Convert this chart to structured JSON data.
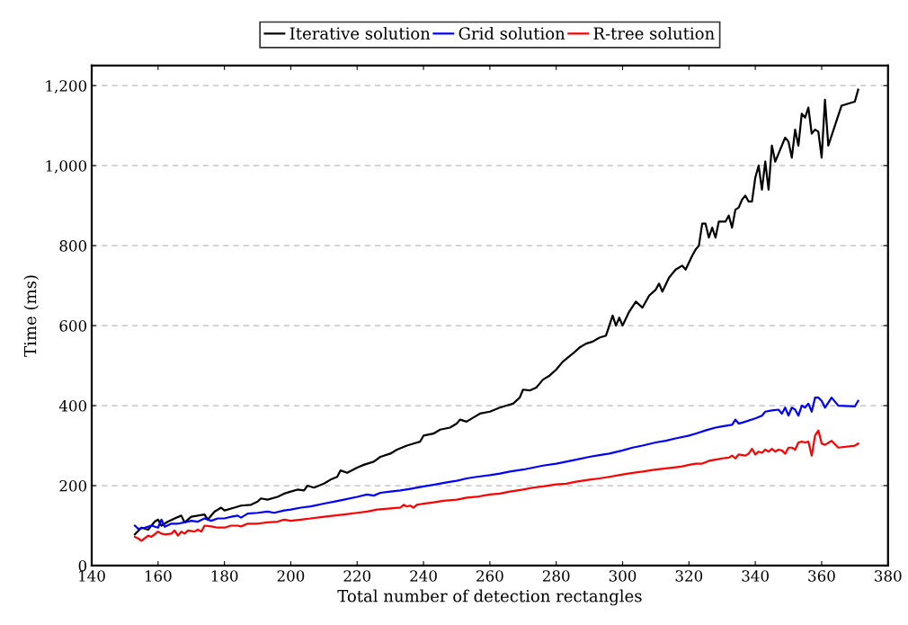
{
  "chart_data": {
    "type": "line",
    "xlabel": "Total number of detection rectangles",
    "ylabel": "Time (ms)",
    "xlim": [
      140,
      380
    ],
    "xticks": [
      140,
      160,
      180,
      200,
      220,
      240,
      260,
      280,
      300,
      320,
      340,
      360,
      380
    ],
    "ylim": [
      0,
      1250
    ],
    "yticks": [
      0,
      200,
      400,
      600,
      800,
      {
        "value": 1000,
        "label": "1,000"
      },
      {
        "value": 1200,
        "label": "1,200"
      }
    ],
    "grid": "y",
    "legend": "top",
    "marker": "none",
    "line_style": "solid",
    "series": [
      {
        "name": "Iterative solution",
        "color": "#000000",
        "x": [
          153,
          155,
          157,
          159,
          160,
          161,
          163,
          165,
          167,
          168,
          170,
          172,
          174,
          175,
          177,
          179,
          180,
          183,
          185,
          188,
          190,
          191,
          193,
          196,
          198,
          200,
          202,
          204,
          205,
          207,
          210,
          212,
          214,
          215,
          217,
          220,
          222,
          225,
          227,
          230,
          232,
          235,
          237,
          239,
          240,
          243,
          245,
          248,
          250,
          251,
          253,
          255,
          257,
          260,
          263,
          265,
          267,
          269,
          270,
          272,
          274,
          276,
          278,
          280,
          282,
          285,
          287,
          289,
          291,
          293,
          295,
          296,
          297,
          298,
          299,
          300,
          302,
          304,
          306,
          308,
          310,
          311,
          312,
          314,
          316,
          318,
          319,
          321,
          322,
          323,
          324,
          325,
          326,
          327,
          328,
          329,
          331,
          332,
          333,
          334,
          335,
          336,
          337,
          338,
          339,
          340,
          341,
          342,
          343,
          344,
          345,
          346,
          347,
          349,
          350,
          351,
          352,
          353,
          354,
          355,
          356,
          357,
          358,
          359,
          360,
          361,
          362,
          364,
          366,
          370,
          371
        ],
        "values": [
          78,
          95,
          90,
          110,
          115,
          100,
          110,
          118,
          125,
          108,
          122,
          125,
          128,
          115,
          135,
          145,
          138,
          145,
          150,
          152,
          160,
          168,
          165,
          172,
          180,
          185,
          190,
          188,
          200,
          195,
          205,
          215,
          222,
          238,
          232,
          245,
          252,
          260,
          272,
          280,
          290,
          300,
          305,
          310,
          325,
          330,
          340,
          345,
          355,
          365,
          360,
          370,
          380,
          385,
          395,
          400,
          405,
          420,
          440,
          438,
          445,
          465,
          475,
          490,
          510,
          530,
          545,
          555,
          560,
          570,
          575,
          600,
          625,
          600,
          620,
          600,
          635,
          660,
          645,
          675,
          690,
          705,
          685,
          720,
          740,
          750,
          740,
          775,
          790,
          800,
          855,
          855,
          820,
          845,
          820,
          860,
          860,
          875,
          845,
          890,
          895,
          915,
          925,
          910,
          910,
          970,
          1000,
          940,
          1010,
          940,
          1050,
          1010,
          1030,
          1070,
          1060,
          1020,
          1090,
          1050,
          1130,
          1120,
          1145,
          1080,
          1090,
          1085,
          1020,
          1165,
          1050,
          1100,
          1150,
          1160,
          1190
        ]
      },
      {
        "name": "Grid solution",
        "color": "#0000ff",
        "x": [
          153,
          154,
          156,
          158,
          160,
          161,
          162,
          164,
          166,
          168,
          170,
          172,
          174,
          176,
          178,
          180,
          182,
          184,
          185,
          187,
          190,
          193,
          195,
          198,
          200,
          203,
          206,
          210,
          213,
          216,
          220,
          223,
          225,
          227,
          230,
          233,
          236,
          240,
          243,
          247,
          250,
          253,
          256,
          260,
          263,
          266,
          270,
          273,
          276,
          280,
          283,
          286,
          290,
          293,
          296,
          300,
          303,
          306,
          310,
          313,
          316,
          320,
          322,
          325,
          328,
          330,
          333,
          334,
          335,
          337,
          340,
          342,
          343,
          345,
          347,
          348,
          349,
          350,
          351,
          352,
          353,
          354,
          355,
          356,
          357,
          358,
          359,
          360,
          361,
          363,
          364,
          365,
          370,
          371
        ],
        "values": [
          100,
          92,
          95,
          100,
          95,
          115,
          97,
          105,
          105,
          108,
          112,
          110,
          118,
          112,
          118,
          118,
          122,
          125,
          120,
          130,
          132,
          135,
          132,
          138,
          140,
          145,
          148,
          155,
          160,
          165,
          172,
          178,
          175,
          182,
          185,
          188,
          192,
          198,
          202,
          208,
          212,
          218,
          222,
          226,
          230,
          235,
          240,
          245,
          250,
          255,
          260,
          265,
          272,
          276,
          280,
          288,
          295,
          300,
          308,
          312,
          318,
          325,
          330,
          338,
          345,
          348,
          352,
          365,
          355,
          360,
          368,
          375,
          385,
          388,
          390,
          380,
          395,
          375,
          395,
          390,
          375,
          400,
          395,
          405,
          385,
          420,
          420,
          412,
          395,
          420,
          410,
          400,
          398,
          412
        ]
      },
      {
        "name": "R-tree solution",
        "color": "#ff0000",
        "x": [
          153,
          154,
          155,
          157,
          158,
          160,
          161,
          162,
          164,
          165,
          166,
          167,
          168,
          169,
          171,
          172,
          173,
          174,
          176,
          178,
          180,
          182,
          184,
          185,
          187,
          190,
          193,
          196,
          198,
          200,
          203,
          206,
          210,
          213,
          216,
          220,
          223,
          226,
          230,
          233,
          234,
          235,
          236,
          237,
          238,
          240,
          243,
          246,
          250,
          253,
          256,
          260,
          263,
          266,
          270,
          273,
          276,
          280,
          283,
          286,
          290,
          293,
          296,
          300,
          303,
          306,
          310,
          313,
          316,
          318,
          320,
          322,
          324,
          326,
          328,
          330,
          332,
          333,
          334,
          335,
          337,
          338,
          339,
          340,
          341,
          342,
          343,
          344,
          345,
          346,
          347,
          348,
          349,
          350,
          351,
          352,
          353,
          354,
          355,
          356,
          357,
          358,
          359,
          360,
          361,
          363,
          365,
          370,
          371
        ],
        "values": [
          72,
          68,
          62,
          75,
          72,
          85,
          80,
          78,
          80,
          88,
          75,
          85,
          80,
          88,
          85,
          90,
          85,
          100,
          98,
          95,
          95,
          100,
          100,
          98,
          105,
          105,
          108,
          110,
          115,
          112,
          115,
          118,
          122,
          125,
          128,
          132,
          135,
          140,
          143,
          145,
          152,
          148,
          150,
          145,
          152,
          155,
          158,
          162,
          165,
          170,
          172,
          178,
          180,
          185,
          190,
          195,
          198,
          203,
          205,
          210,
          215,
          218,
          222,
          228,
          232,
          235,
          240,
          243,
          246,
          248,
          252,
          255,
          255,
          262,
          265,
          268,
          270,
          275,
          268,
          278,
          275,
          280,
          292,
          278,
          285,
          282,
          290,
          285,
          292,
          285,
          290,
          288,
          280,
          295,
          295,
          290,
          308,
          310,
          308,
          310,
          275,
          325,
          338,
          305,
          302,
          312,
          295,
          300,
          305
        ]
      }
    ]
  }
}
